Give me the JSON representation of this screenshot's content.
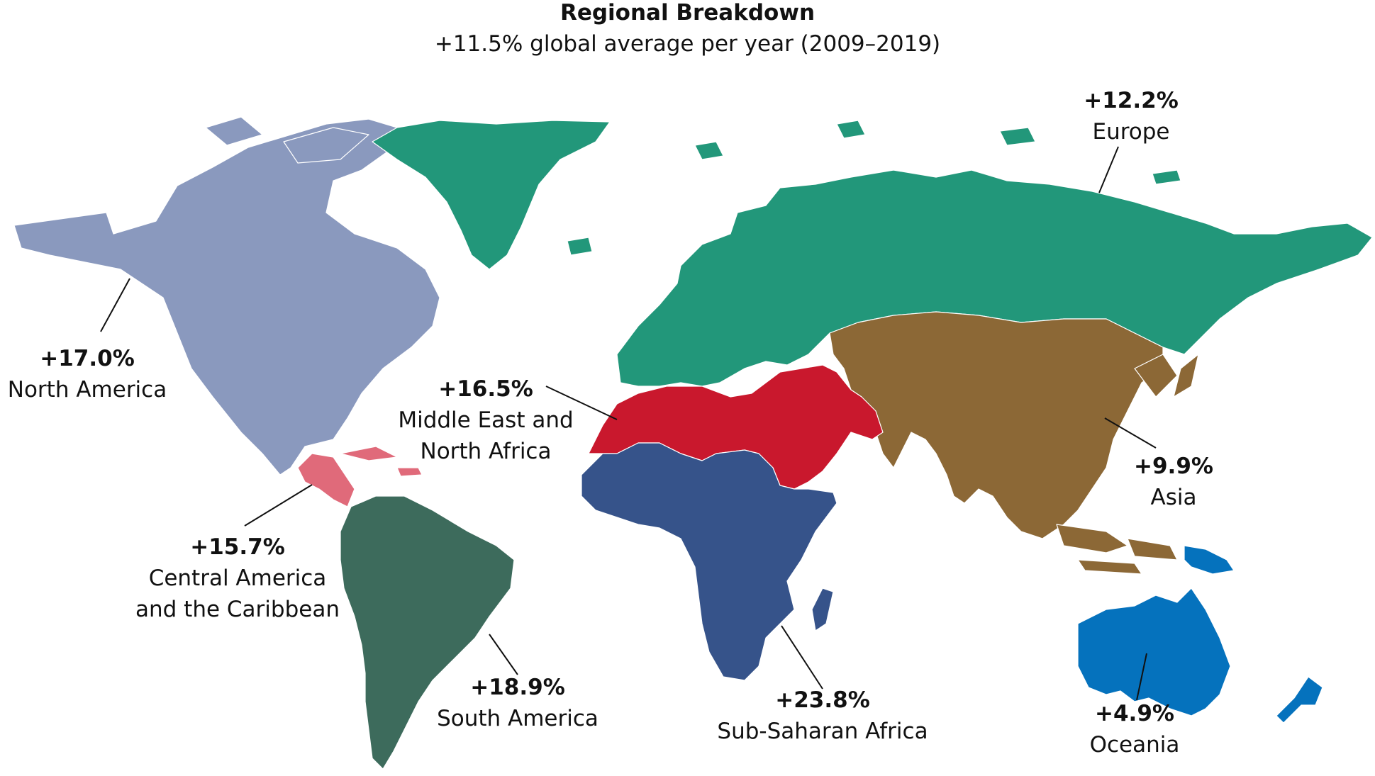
{
  "title": "Regional Breakdown",
  "subtitle": "+11.5% global average per year (2009–2019)",
  "regions": {
    "europe": {
      "value": "+12.2%",
      "name": "Europe",
      "color": "#22977a"
    },
    "north_america": {
      "value": "+17.0%",
      "name": "North America",
      "color": "#8a99be"
    },
    "mena": {
      "value": "+16.5%",
      "name": "Middle East and North Africa",
      "name_line1": "Middle East and",
      "name_line2": "North Africa",
      "color": "#c9182d"
    },
    "asia": {
      "value": "+9.9%",
      "name": "Asia",
      "color": "#8c6836"
    },
    "central_america": {
      "value": "+15.7%",
      "name": "Central America and the Caribbean",
      "name_line1": "Central America",
      "name_line2": "and the Caribbean",
      "color": "#e06a7a"
    },
    "south_america": {
      "value": "+18.9%",
      "name": "South America",
      "color": "#3d6b5c"
    },
    "sub_saharan_africa": {
      "value": "+23.8%",
      "name": "Sub-Saharan Africa",
      "color": "#36538a"
    },
    "oceania": {
      "value": "+4.9%",
      "name": "Oceania",
      "color": "#0572bd"
    }
  }
}
